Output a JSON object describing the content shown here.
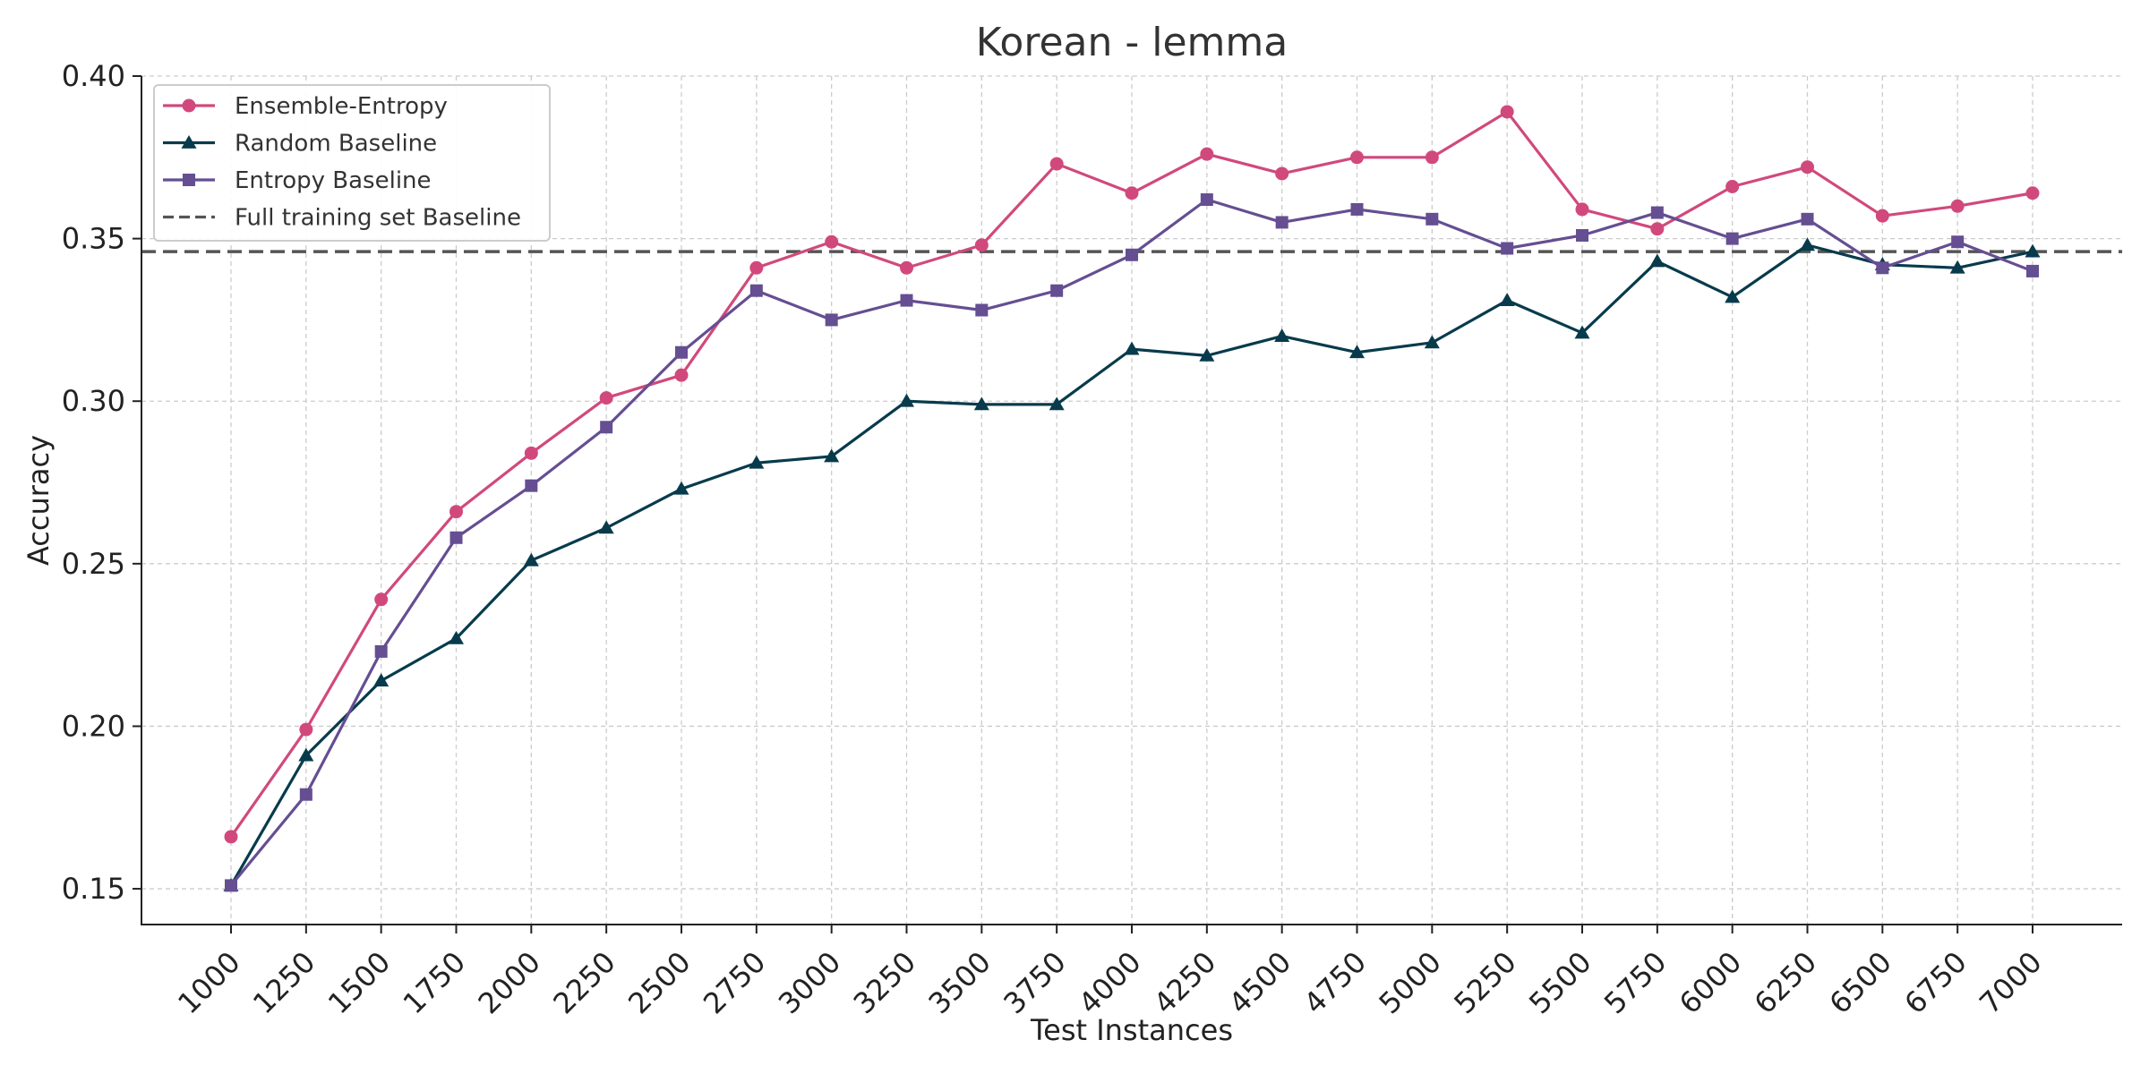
{
  "chart_data": {
    "type": "line",
    "title": "Korean - lemma",
    "xlabel": "Test Instances",
    "ylabel": "Accuracy",
    "x": [
      1000,
      1250,
      1500,
      1750,
      2000,
      2250,
      2500,
      2750,
      3000,
      3250,
      3500,
      3750,
      4000,
      4250,
      4500,
      4750,
      5000,
      5250,
      5500,
      5750,
      6000,
      6250,
      6500,
      6750,
      7000
    ],
    "x_ticks": [
      "1000",
      "1250",
      "1500",
      "1750",
      "2000",
      "2250",
      "2500",
      "2750",
      "3000",
      "3250",
      "3500",
      "3750",
      "4000",
      "4250",
      "4500",
      "4750",
      "5000",
      "5250",
      "5500",
      "5750",
      "6000",
      "6250",
      "6500",
      "6750",
      "7000"
    ],
    "y_ticks": [
      "0.15",
      "0.20",
      "0.25",
      "0.30",
      "0.35",
      "0.40"
    ],
    "ylim": [
      0.139,
      0.4
    ],
    "grid": true,
    "legend_position": "top-left",
    "series": [
      {
        "name": "Ensemble-Entropy",
        "color": "#d1497c",
        "marker": "circle",
        "values": [
          0.166,
          0.199,
          0.239,
          0.266,
          0.284,
          0.301,
          0.308,
          0.341,
          0.349,
          0.341,
          0.348,
          0.373,
          0.364,
          0.376,
          0.37,
          0.375,
          0.375,
          0.389,
          0.359,
          0.353,
          0.366,
          0.372,
          0.357,
          0.36,
          0.364
        ]
      },
      {
        "name": "Random Baseline",
        "color": "#073b4c",
        "marker": "triangle",
        "values": [
          0.151,
          0.191,
          0.214,
          0.227,
          0.251,
          0.261,
          0.273,
          0.281,
          0.283,
          0.3,
          0.299,
          0.299,
          0.316,
          0.314,
          0.32,
          0.315,
          0.318,
          0.331,
          0.321,
          0.343,
          0.332,
          0.348,
          0.342,
          0.341,
          0.346
        ]
      },
      {
        "name": "Entropy Baseline",
        "color": "#654e92",
        "marker": "square",
        "values": [
          0.151,
          0.179,
          0.223,
          0.258,
          0.274,
          0.292,
          0.315,
          0.334,
          0.325,
          0.331,
          0.328,
          0.334,
          0.345,
          0.362,
          0.355,
          0.359,
          0.356,
          0.347,
          0.351,
          0.358,
          0.35,
          0.356,
          0.341,
          0.349,
          0.34
        ]
      }
    ],
    "reference_line": {
      "name": "Full training set Baseline",
      "value": 0.346,
      "color": "#555555",
      "style": "dashed"
    }
  }
}
